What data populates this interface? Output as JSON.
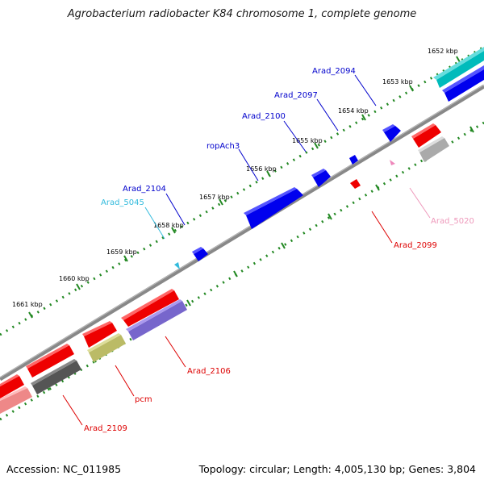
{
  "title": "Agrobacterium radiobacter K84 chromosome 1, complete genome",
  "footer": {
    "accession": "Accession: NC_011985",
    "summary": "Topology: circular; Length: 4,005,130 bp; Genes: 3,804"
  },
  "ticks": [
    {
      "label": "1652 kbp"
    },
    {
      "label": "1653 kbp"
    },
    {
      "label": "1654 kbp"
    },
    {
      "label": "1655 kbp"
    },
    {
      "label": "1656 kbp"
    },
    {
      "label": "1657 kbp"
    },
    {
      "label": "1658 kbp"
    },
    {
      "label": "1659 kbp"
    },
    {
      "label": "1660 kbp"
    },
    {
      "label": "1661 kbp"
    }
  ],
  "gene_labels": [
    {
      "name": "Arad_2094",
      "color": "#0000cc"
    },
    {
      "name": "Arad_2097",
      "color": "#0000cc"
    },
    {
      "name": "Arad_2100",
      "color": "#0000cc"
    },
    {
      "name": "ropAch3",
      "color": "#0000cc"
    },
    {
      "name": "Arad_2104",
      "color": "#0000cc"
    },
    {
      "name": "Arad_5045",
      "color": "#33bbdd"
    },
    {
      "name": "Arad_5020",
      "color": "#ee99bb"
    },
    {
      "name": "Arad_2099",
      "color": "#dd0000"
    },
    {
      "name": "Arad_2106",
      "color": "#dd0000"
    },
    {
      "name": "pcm",
      "color": "#dd0000"
    },
    {
      "name": "Arad_2109",
      "color": "#dd0000"
    }
  ],
  "colors": {
    "forward_cds": "#0000ee",
    "reverse_cds": "#ff0000",
    "rna_forward": "#33bbdd",
    "rna_reverse": "#ee88bb",
    "pseudo_gray": "#999999",
    "dark_gray": "#555555",
    "teal": "#00bbbb",
    "lavender": "#7766cc",
    "olive": "#bbbb66",
    "pink": "#ee8888",
    "backbone": "#888888",
    "tick_green": "#228822"
  }
}
